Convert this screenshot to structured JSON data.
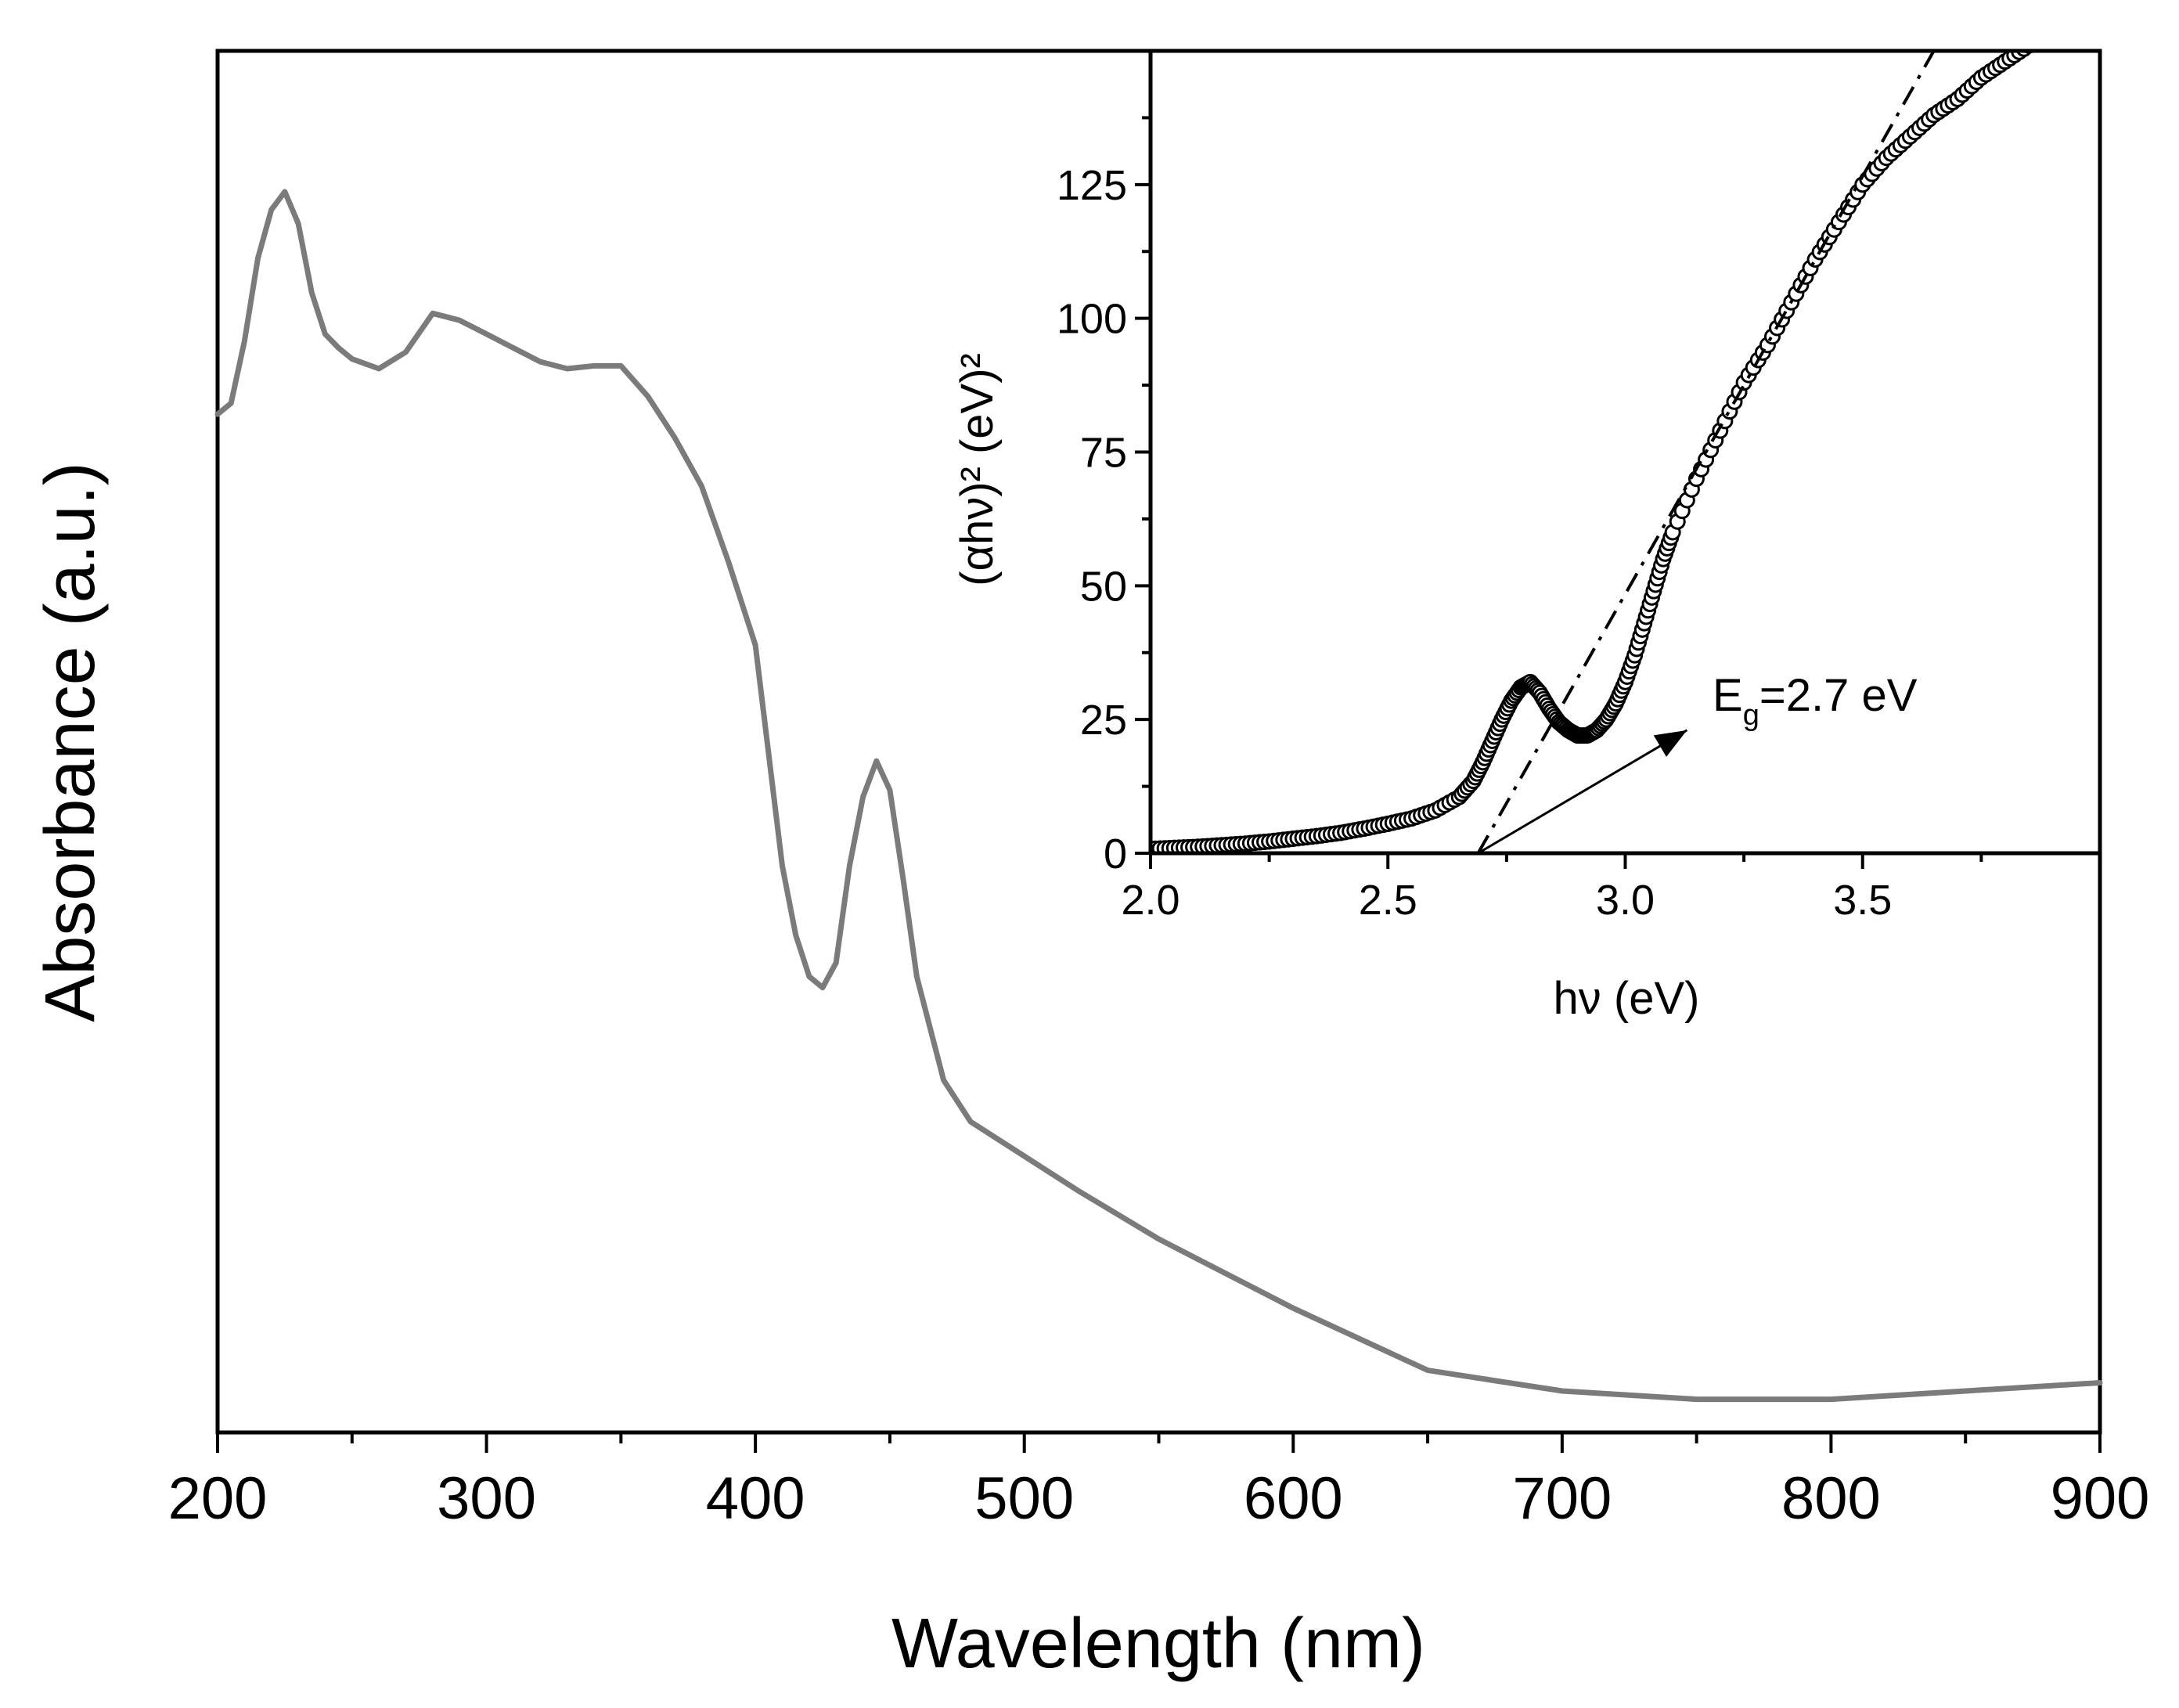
{
  "chart_data": [
    {
      "type": "line",
      "title": "",
      "xlabel": "Wavelength (nm)",
      "ylabel": "Absorbance (a.u.)",
      "xlim": [
        200,
        900
      ],
      "ylim": [
        0,
        1
      ],
      "x_ticks": [
        200,
        300,
        400,
        500,
        600,
        700,
        800,
        900
      ],
      "x_tick_labels": [
        "200",
        "300",
        "400",
        "500",
        "600",
        "700",
        "800",
        "900"
      ],
      "grid": false,
      "series": [
        {
          "name": "Absorbance",
          "color": "#7b7b7b",
          "x": [
            200,
            205,
            210,
            215,
            220,
            225,
            230,
            235,
            240,
            245,
            250,
            260,
            270,
            280,
            290,
            300,
            310,
            320,
            330,
            340,
            350,
            360,
            370,
            380,
            390,
            400,
            405,
            410,
            415,
            420,
            425,
            430,
            435,
            440,
            445,
            450,
            455,
            460,
            470,
            480,
            500,
            520,
            550,
            600,
            650,
            700,
            750,
            800,
            850,
            900
          ],
          "y": [
            0.737,
            0.745,
            0.79,
            0.85,
            0.885,
            0.898,
            0.875,
            0.825,
            0.795,
            0.785,
            0.777,
            0.77,
            0.782,
            0.81,
            0.805,
            0.795,
            0.785,
            0.775,
            0.77,
            0.772,
            0.772,
            0.75,
            0.72,
            0.685,
            0.63,
            0.57,
            0.49,
            0.41,
            0.36,
            0.33,
            0.322,
            0.34,
            0.41,
            0.46,
            0.486,
            0.465,
            0.4,
            0.33,
            0.255,
            0.225,
            0.2,
            0.175,
            0.14,
            0.09,
            0.045,
            0.03,
            0.024,
            0.024,
            0.03,
            0.036
          ]
        }
      ]
    },
    {
      "type": "scatter",
      "title": "",
      "xlabel": "hν (eV)",
      "ylabel": "(αhν)² (eV)²",
      "xlim": [
        2.0,
        4.0
      ],
      "ylim": [
        0,
        150
      ],
      "x_ticks": [
        2.0,
        2.5,
        3.0,
        3.5
      ],
      "x_tick_labels": [
        "2.0",
        "2.5",
        "3.0",
        "3.5"
      ],
      "y_ticks": [
        0,
        25,
        50,
        75,
        100,
        125
      ],
      "y_tick_labels": [
        "0",
        "25",
        "50",
        "75",
        "100",
        "125"
      ],
      "grid": false,
      "series": [
        {
          "name": "(αhν)²",
          "marker": "open-circle",
          "x": [
            2.0,
            2.05,
            2.1,
            2.15,
            2.2,
            2.25,
            2.3,
            2.35,
            2.4,
            2.45,
            2.5,
            2.55,
            2.6,
            2.65,
            2.68,
            2.7,
            2.72,
            2.74,
            2.76,
            2.78,
            2.8,
            2.82,
            2.84,
            2.86,
            2.88,
            2.9,
            2.92,
            2.94,
            2.96,
            2.98,
            3.0,
            3.02,
            3.04,
            3.06,
            3.08,
            3.1,
            3.15,
            3.2,
            3.25,
            3.3,
            3.35,
            3.4,
            3.45,
            3.5,
            3.55,
            3.6,
            3.65,
            3.7,
            3.75,
            3.8,
            3.85
          ],
          "y": [
            0.8,
            1.0,
            1.2,
            1.5,
            1.8,
            2.2,
            2.7,
            3.2,
            3.8,
            4.6,
            5.5,
            6.5,
            8.0,
            10.5,
            13.5,
            17,
            21,
            25,
            28.5,
            31,
            32,
            30,
            27,
            24.5,
            23,
            22,
            22,
            23,
            25,
            28,
            32,
            37,
            43,
            49,
            55,
            60,
            70,
            79,
            88,
            95,
            103,
            111,
            118,
            125,
            130,
            134,
            138,
            141,
            145,
            148,
            151
          ]
        },
        {
          "name": "linear fit",
          "style": "dash-dot",
          "x": [
            2.69,
            3.65
          ],
          "y": [
            0,
            150
          ]
        }
      ],
      "annotations": [
        {
          "label_main": "E",
          "label_sub": "g",
          "label_rest": "=2.7 eV",
          "arrow_from": [
            2.69,
            0
          ],
          "arrow_to": [
            3.13,
            23
          ]
        }
      ]
    }
  ]
}
